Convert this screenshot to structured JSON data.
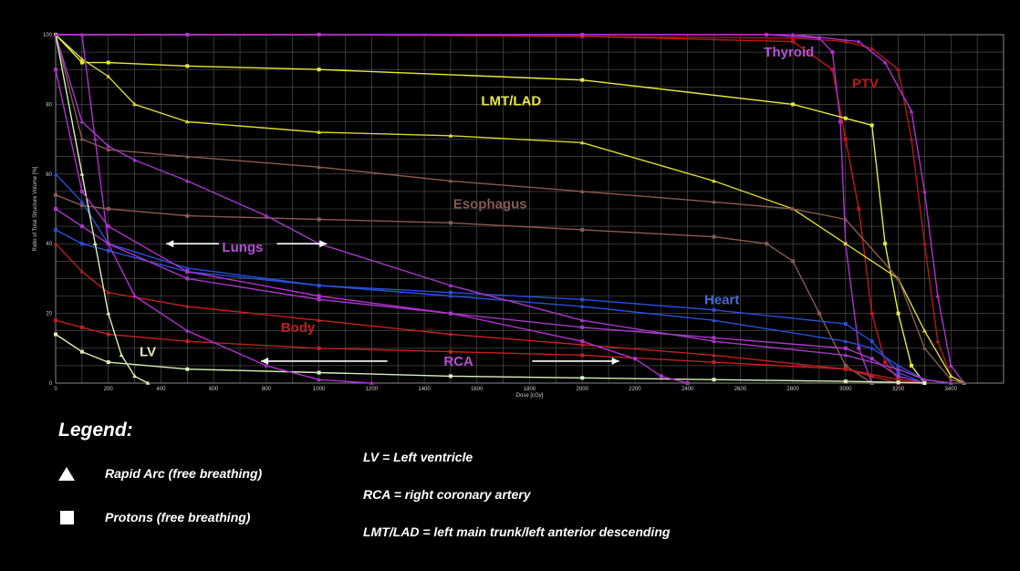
{
  "chart_data": {
    "type": "line",
    "title": "",
    "xlabel": "Dose [cGy]",
    "ylabel": "Ratio of Total Structure Volume [%]",
    "xlim": [
      0,
      3600
    ],
    "ylim": [
      0,
      100
    ],
    "x_ticks": [
      0,
      200,
      400,
      600,
      800,
      1000,
      1200,
      1400,
      1600,
      1800,
      2000,
      2200,
      2400,
      2600,
      2800,
      3000,
      3200,
      3400
    ],
    "y_ticks": [
      0,
      20,
      40,
      60,
      80,
      100
    ],
    "grid": true,
    "series": [
      {
        "name": "PTV",
        "method": "Rapid Arc",
        "color": "#b01a1a",
        "marker": "triangle",
        "x": [
          0,
          500,
          1000,
          2000,
          2800,
          3000,
          3100,
          3200,
          3250,
          3300,
          3350,
          3400,
          3450
        ],
        "y": [
          100,
          100,
          100,
          99.5,
          99,
          98,
          96,
          90,
          70,
          40,
          12,
          2,
          0
        ]
      },
      {
        "name": "PTV",
        "method": "Protons",
        "color": "#c01818",
        "marker": "square",
        "x": [
          0,
          500,
          1000,
          2000,
          2800,
          2950,
          3000,
          3050,
          3100,
          3150,
          3200,
          3300
        ],
        "y": [
          100,
          100,
          100,
          99.5,
          98,
          90,
          70,
          50,
          20,
          6,
          1,
          0
        ]
      },
      {
        "name": "Thyroid",
        "method": "Rapid Arc",
        "color": "#b030d0",
        "marker": "triangle",
        "x": [
          0,
          500,
          1000,
          2000,
          2800,
          3050,
          3150,
          3250,
          3300,
          3350,
          3400,
          3450
        ],
        "y": [
          100,
          100,
          100,
          100,
          100,
          98,
          92,
          78,
          55,
          25,
          5,
          0
        ]
      },
      {
        "name": "Thyroid",
        "method": "Protons",
        "color": "#b030d0",
        "marker": "square",
        "x": [
          0,
          500,
          1000,
          2000,
          2700,
          2900,
          2950,
          2980,
          3000,
          3050,
          3100
        ],
        "y": [
          100,
          100,
          100,
          100,
          100,
          99,
          95,
          75,
          40,
          10,
          0
        ]
      },
      {
        "name": "LMT/LAD",
        "method": "Rapid Arc",
        "color": "#d8d830",
        "marker": "triangle",
        "x": [
          0,
          100,
          200,
          300,
          500,
          1000,
          1500,
          2000,
          2500,
          2800,
          3000,
          3200,
          3300,
          3400,
          3450
        ],
        "y": [
          100,
          93,
          88,
          80,
          75,
          72,
          71,
          69,
          58,
          50,
          40,
          30,
          15,
          2,
          0
        ]
      },
      {
        "name": "LMT/LAD",
        "method": "Protons",
        "color": "#e8e840",
        "marker": "square",
        "x": [
          0,
          100,
          200,
          500,
          1000,
          2000,
          2800,
          3000,
          3100,
          3150,
          3200,
          3250,
          3300
        ],
        "y": [
          100,
          92,
          92,
          91,
          90,
          87,
          80,
          76,
          74,
          40,
          20,
          5,
          0
        ]
      },
      {
        "name": "Esophagus",
        "method": "Rapid Arc",
        "color": "#8a5a50",
        "marker": "triangle",
        "x": [
          0,
          100,
          200,
          500,
          1000,
          1500,
          2000,
          2500,
          2800,
          3000,
          3200,
          3300,
          3400,
          3450
        ],
        "y": [
          100,
          70,
          67,
          65,
          62,
          58,
          55,
          52,
          50,
          47,
          30,
          10,
          1,
          0
        ]
      },
      {
        "name": "Esophagus",
        "method": "Protons",
        "color": "#8a5a50",
        "marker": "square",
        "x": [
          0,
          100,
          200,
          500,
          1000,
          1500,
          2000,
          2500,
          2700,
          2800,
          2900,
          3000,
          3100
        ],
        "y": [
          54,
          51,
          50,
          48,
          47,
          46,
          44,
          42,
          40,
          35,
          20,
          5,
          0
        ]
      },
      {
        "name": "Heart",
        "method": "Rapid Arc",
        "color": "#2a4fd8",
        "marker": "triangle",
        "x": [
          0,
          100,
          200,
          500,
          1000,
          1500,
          2000,
          2500,
          3000,
          3100,
          3200,
          3300,
          3400
        ],
        "y": [
          60,
          52,
          40,
          33,
          28,
          25,
          22,
          18,
          12,
          10,
          5,
          1,
          0
        ]
      },
      {
        "name": "Heart",
        "method": "Protons",
        "color": "#2a4fd8",
        "marker": "square",
        "x": [
          0,
          100,
          200,
          500,
          1000,
          1500,
          2000,
          2500,
          3000,
          3100,
          3200,
          3300
        ],
        "y": [
          44,
          40,
          38,
          32,
          28,
          26,
          24,
          21,
          17,
          12,
          3,
          0
        ]
      },
      {
        "name": "Lungs",
        "method": "Rapid Arc",
        "color": "#a638c8",
        "marker": "triangle",
        "x": [
          0,
          100,
          200,
          300,
          500,
          800,
          1000,
          1500,
          2000,
          2500,
          3000,
          3200,
          3300,
          3400
        ],
        "y": [
          100,
          75,
          68,
          64,
          58,
          48,
          40,
          28,
          18,
          12,
          8,
          4,
          1,
          0
        ]
      },
      {
        "name": "Lungs",
        "method": "Protons",
        "color": "#a638c8",
        "marker": "square",
        "x": [
          0,
          100,
          200,
          500,
          1000,
          1500,
          2000,
          2500,
          3000,
          3100,
          3200,
          3300
        ],
        "y": [
          50,
          45,
          40,
          30,
          24,
          20,
          16,
          13,
          10,
          7,
          2,
          0
        ]
      },
      {
        "name": "Body",
        "method": "Rapid Arc",
        "color": "#c02020",
        "marker": "triangle",
        "x": [
          0,
          100,
          200,
          500,
          1000,
          1500,
          2000,
          2500,
          3000,
          3200,
          3300
        ],
        "y": [
          40,
          32,
          26,
          22,
          18,
          14,
          11,
          8,
          4,
          1,
          0
        ]
      },
      {
        "name": "Body",
        "method": "Protons",
        "color": "#c02020",
        "marker": "square",
        "x": [
          0,
          100,
          200,
          500,
          1000,
          1500,
          2000,
          2500,
          3000,
          3100,
          3200
        ],
        "y": [
          18,
          16,
          14,
          12,
          10,
          9,
          8,
          6,
          4,
          2,
          0
        ]
      },
      {
        "name": "LV",
        "method": "Rapid Arc",
        "color": "#d8f0b8",
        "marker": "triangle",
        "x": [
          0,
          100,
          150,
          200,
          250,
          300,
          350
        ],
        "y": [
          100,
          60,
          40,
          20,
          8,
          2,
          0
        ]
      },
      {
        "name": "LV",
        "method": "Protons",
        "color": "#d8f0b8",
        "marker": "square",
        "x": [
          0,
          100,
          200,
          500,
          1000,
          1500,
          2000,
          2500,
          3000,
          3200,
          3300
        ],
        "y": [
          14,
          9,
          6,
          4,
          3,
          2,
          1.5,
          1,
          0.5,
          0.2,
          0
        ]
      },
      {
        "name": "RCA",
        "method": "Rapid Arc",
        "color": "#b030d0",
        "marker": "triangle",
        "x": [
          0,
          100,
          150,
          200,
          300,
          500,
          800,
          1000,
          1200
        ],
        "y": [
          100,
          100,
          70,
          40,
          25,
          15,
          5,
          1,
          0
        ]
      },
      {
        "name": "RCA",
        "method": "Protons",
        "color": "#b030d0",
        "marker": "square",
        "x": [
          0,
          100,
          200,
          500,
          1000,
          1500,
          2000,
          2200,
          2300,
          2400
        ],
        "y": [
          90,
          55,
          45,
          32,
          25,
          20,
          12,
          7,
          2,
          0
        ]
      }
    ],
    "annotations": [
      {
        "text": "LMT/LAD",
        "color": "#e8e840",
        "x": 1730,
        "y": 81
      },
      {
        "text": "Thyroid",
        "color": "#b84ed8",
        "x": 2785,
        "y": 95
      },
      {
        "text": "PTV",
        "color": "#c01818",
        "x": 3075,
        "y": 86
      },
      {
        "text": "Esophagus",
        "color": "#8a5a50",
        "x": 1650,
        "y": 51.5
      },
      {
        "text": "Lungs",
        "color": "#b84ed8",
        "x": 710,
        "y": 39
      },
      {
        "text": "Heart",
        "color": "#4a6ad8",
        "x": 2530,
        "y": 24
      },
      {
        "text": "Body",
        "color": "#c02020",
        "x": 920,
        "y": 16
      },
      {
        "text": "LV",
        "color": "#d8f0b8",
        "x": 350,
        "y": 9
      },
      {
        "text": "RCA",
        "color": "#b84ed8",
        "x": 1530,
        "y": 6.3
      }
    ],
    "arrows": [
      {
        "label": "Lungs",
        "from_x": 620,
        "to_x": 420,
        "y": 40
      },
      {
        "label": "Lungs",
        "from_x": 840,
        "to_x": 1030,
        "y": 40
      },
      {
        "label": "RCA",
        "from_x": 1260,
        "to_x": 780,
        "y": 6.3
      },
      {
        "label": "RCA",
        "from_x": 1810,
        "to_x": 2140,
        "y": 6.3
      }
    ]
  },
  "legend": {
    "title": "Legend:",
    "rapid_arc": "Rapid Arc (free breathing)",
    "protons": "Protons (free breathing)",
    "lv_def": "LV = Left ventricle",
    "rca_def": "RCA = right coronary artery",
    "lmt_def": "LMT/LAD = left main trunk/left anterior descending"
  }
}
